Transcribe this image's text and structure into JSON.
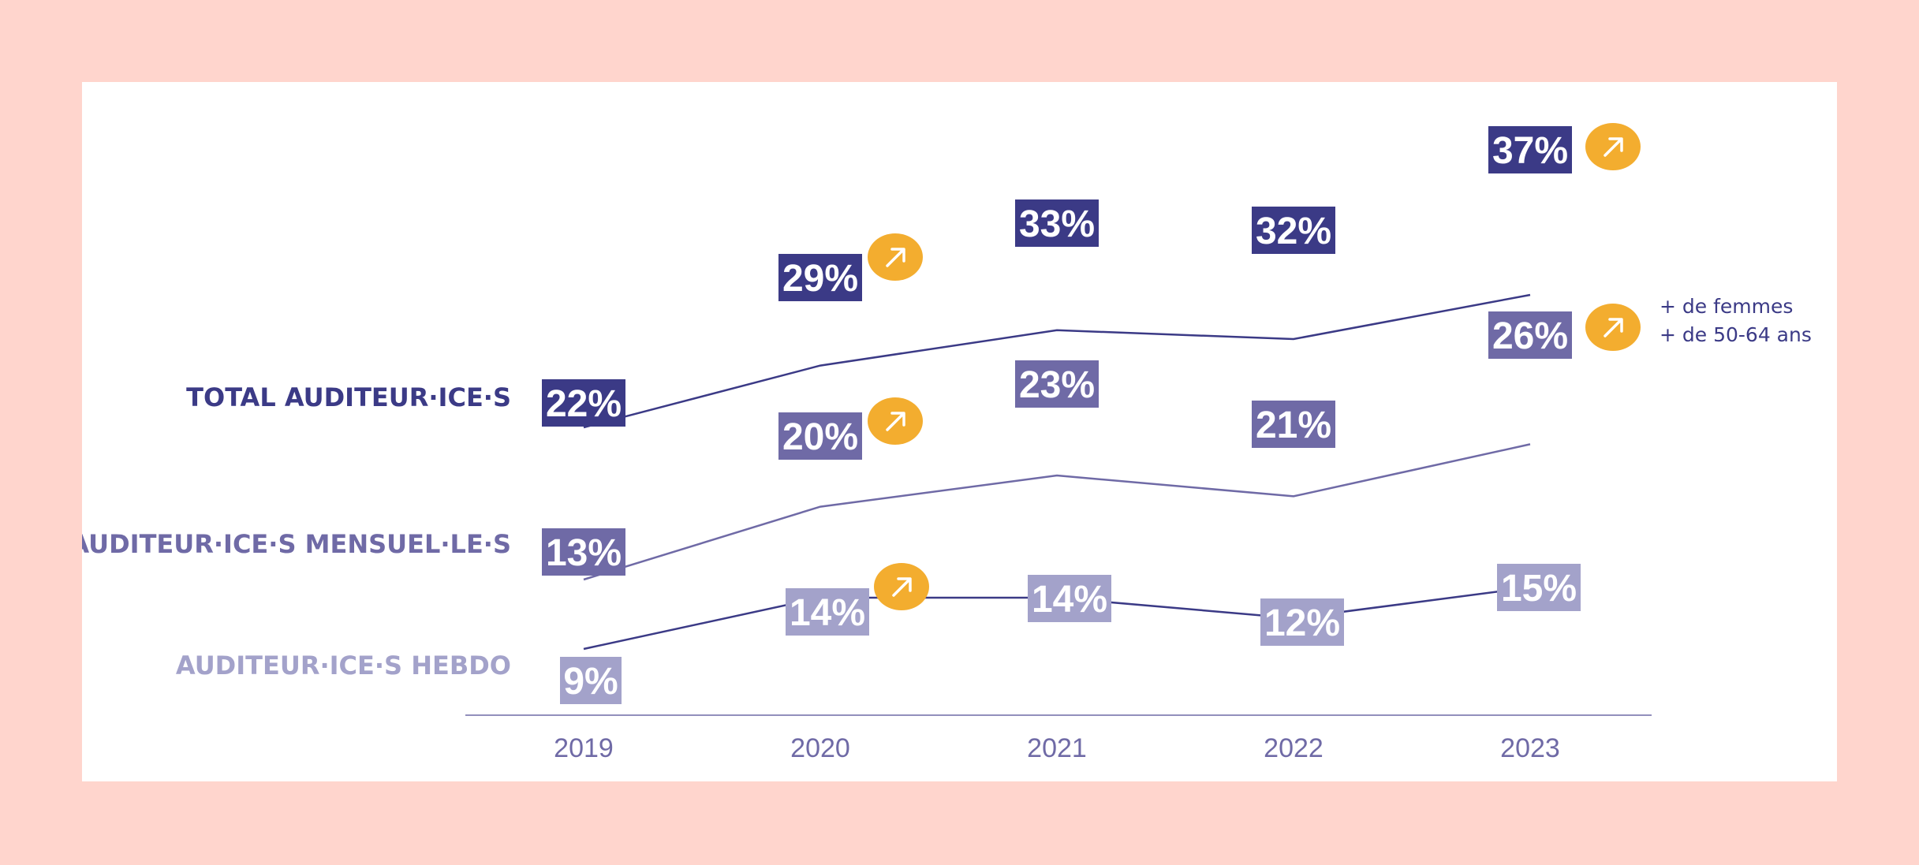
{
  "chart_data": {
    "type": "line",
    "categories": [
      "2019",
      "2020",
      "2021",
      "2022",
      "2023"
    ],
    "series": [
      {
        "name": "TOTAL AUDITEUR·ICE·S",
        "color": "#3b3a86",
        "values": [
          22,
          29,
          33,
          32,
          37
        ],
        "labels": [
          "22%",
          "29%",
          "33%",
          "32%",
          "37%"
        ],
        "trend_up": [
          false,
          true,
          false,
          false,
          true
        ]
      },
      {
        "name": "AUDITEUR·ICE·S MENSUEL·LE·S",
        "color": "#6f6aa6",
        "values": [
          13,
          20,
          23,
          21,
          26
        ],
        "labels": [
          "13%",
          "20%",
          "23%",
          "21%",
          "26%"
        ],
        "trend_up": [
          false,
          true,
          false,
          false,
          true
        ]
      },
      {
        "name": "AUDITEUR·ICE·S HEBDO",
        "color": "#a3a2ca",
        "line_color": "#3b3a86",
        "values": [
          9,
          14,
          14,
          12,
          15
        ],
        "labels": [
          "9%",
          "14%",
          "14%",
          "12%",
          "15%"
        ],
        "trend_up": [
          false,
          true,
          false,
          false,
          false
        ]
      }
    ],
    "annotation": [
      "+ de femmes",
      "+ de 50-64 ans"
    ],
    "axis_color": "#6f6aa6",
    "badge_color": "#f3ad2f",
    "grid": false,
    "legend": "left, inline labels"
  }
}
